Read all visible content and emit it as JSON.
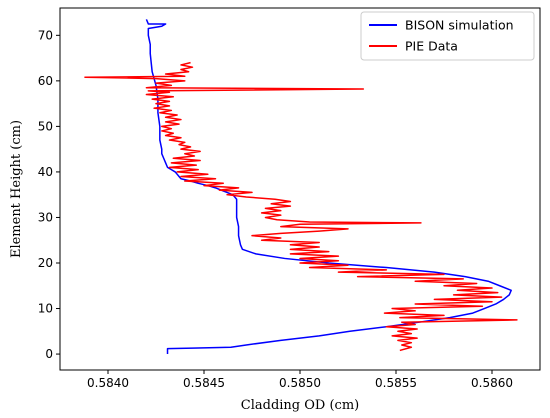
{
  "chart_data": {
    "type": "line",
    "xlabel": "Cladding OD (cm)",
    "ylabel": "Element Height (cm)",
    "xlim": [
      0.58375,
      0.58625
    ],
    "ylim": [
      -3.5,
      76
    ],
    "xticks": [
      0.584,
      0.5845,
      0.585,
      0.5855,
      0.586
    ],
    "xtick_labels": [
      "0.5840",
      "0.5845",
      "0.5850",
      "0.5855",
      "0.5860"
    ],
    "yticks": [
      0,
      10,
      20,
      30,
      40,
      50,
      60,
      70
    ],
    "ytick_labels": [
      "0",
      "10",
      "20",
      "30",
      "40",
      "50",
      "60",
      "70"
    ],
    "grid": false,
    "legend_position": "top-right",
    "series": [
      {
        "name": "BISON simulation",
        "color": "#0000ff",
        "points": [
          [
            0.58431,
            0.0
          ],
          [
            0.58431,
            1.2
          ],
          [
            0.58444,
            1.3
          ],
          [
            0.58464,
            1.5
          ],
          [
            0.58472,
            2.0
          ],
          [
            0.5849,
            3.0
          ],
          [
            0.5851,
            4.0
          ],
          [
            0.58526,
            5.0
          ],
          [
            0.58545,
            6.0
          ],
          [
            0.58562,
            7.0
          ],
          [
            0.58578,
            8.0
          ],
          [
            0.5859,
            9.0
          ],
          [
            0.58596,
            10.0
          ],
          [
            0.58602,
            11.0
          ],
          [
            0.58606,
            12.0
          ],
          [
            0.58609,
            13.0
          ],
          [
            0.5861,
            14.0
          ],
          [
            0.58604,
            15.0
          ],
          [
            0.58598,
            16.0
          ],
          [
            0.58586,
            17.0
          ],
          [
            0.5857,
            18.0
          ],
          [
            0.58545,
            19.0
          ],
          [
            0.58515,
            20.0
          ],
          [
            0.58492,
            21.0
          ],
          [
            0.58477,
            22.0
          ],
          [
            0.5847,
            23.0
          ],
          [
            0.58469,
            24.0
          ],
          [
            0.58468,
            26.0
          ],
          [
            0.58468,
            28.0
          ],
          [
            0.58467,
            30.0
          ],
          [
            0.58467,
            32.0
          ],
          [
            0.58467,
            34.0
          ],
          [
            0.58465,
            35.0
          ],
          [
            0.58462,
            35.5
          ],
          [
            0.58459,
            36.0
          ],
          [
            0.58456,
            36.5
          ],
          [
            0.58452,
            37.0
          ],
          [
            0.58447,
            37.5
          ],
          [
            0.58443,
            38.0
          ],
          [
            0.58438,
            38.5
          ],
          [
            0.58437,
            39.0
          ],
          [
            0.58436,
            39.5
          ],
          [
            0.58435,
            40.0
          ],
          [
            0.58433,
            40.5
          ],
          [
            0.58431,
            41.0
          ],
          [
            0.5843,
            42.0
          ],
          [
            0.58429,
            43.0
          ],
          [
            0.58428,
            44.0
          ],
          [
            0.58428,
            45.0
          ],
          [
            0.58427,
            47.0
          ],
          [
            0.58427,
            50.0
          ],
          [
            0.58426,
            53.0
          ],
          [
            0.58426,
            56.0
          ],
          [
            0.58425,
            59.0
          ],
          [
            0.58423,
            62.0
          ],
          [
            0.58422,
            66.0
          ],
          [
            0.58422,
            68.0
          ],
          [
            0.58421,
            70.0
          ],
          [
            0.58421,
            71.5
          ],
          [
            0.58428,
            72.0
          ],
          [
            0.5843,
            72.5
          ],
          [
            0.58421,
            72.5
          ],
          [
            0.5842,
            73.5
          ]
        ]
      },
      {
        "name": "PIE Data",
        "color": "#ff0000",
        "points": [
          [
            0.58552,
            0.8
          ],
          [
            0.58558,
            1.5
          ],
          [
            0.58553,
            2.0
          ],
          [
            0.58558,
            2.5
          ],
          [
            0.58551,
            3.0
          ],
          [
            0.58561,
            3.5
          ],
          [
            0.58548,
            4.0
          ],
          [
            0.58558,
            4.5
          ],
          [
            0.58551,
            5.0
          ],
          [
            0.58561,
            5.5
          ],
          [
            0.58545,
            6.0
          ],
          [
            0.5856,
            6.5
          ],
          [
            0.58553,
            7.0
          ],
          [
            0.58613,
            7.5
          ],
          [
            0.58552,
            8.0
          ],
          [
            0.58575,
            8.5
          ],
          [
            0.58544,
            9.0
          ],
          [
            0.5856,
            9.5
          ],
          [
            0.58548,
            10.0
          ],
          [
            0.58595,
            10.5
          ],
          [
            0.5856,
            11.0
          ],
          [
            0.586,
            11.5
          ],
          [
            0.5857,
            12.0
          ],
          [
            0.58605,
            12.5
          ],
          [
            0.5858,
            13.0
          ],
          [
            0.58603,
            13.5
          ],
          [
            0.58582,
            14.0
          ],
          [
            0.586,
            14.5
          ],
          [
            0.58575,
            15.0
          ],
          [
            0.58592,
            15.5
          ],
          [
            0.5856,
            16.0
          ],
          [
            0.58585,
            16.5
          ],
          [
            0.5853,
            17.0
          ],
          [
            0.58575,
            17.5
          ],
          [
            0.5852,
            18.0
          ],
          [
            0.58545,
            18.5
          ],
          [
            0.58505,
            19.0
          ],
          [
            0.58525,
            19.5
          ],
          [
            0.585,
            20.0
          ],
          [
            0.5852,
            20.5
          ],
          [
            0.585,
            21.0
          ],
          [
            0.5852,
            21.5
          ],
          [
            0.58495,
            22.0
          ],
          [
            0.58515,
            22.5
          ],
          [
            0.58495,
            23.0
          ],
          [
            0.5851,
            23.5
          ],
          [
            0.58495,
            24.0
          ],
          [
            0.5851,
            24.5
          ],
          [
            0.5848,
            25.0
          ],
          [
            0.5849,
            25.5
          ],
          [
            0.58475,
            26.0
          ],
          [
            0.5849,
            26.5
          ],
          [
            0.5851,
            27.0
          ],
          [
            0.58525,
            27.5
          ],
          [
            0.5849,
            28.0
          ],
          [
            0.585,
            28.5
          ],
          [
            0.58563,
            28.8
          ],
          [
            0.58505,
            29.0
          ],
          [
            0.58488,
            29.5
          ],
          [
            0.58482,
            30.0
          ],
          [
            0.5849,
            30.5
          ],
          [
            0.5848,
            31.0
          ],
          [
            0.5849,
            31.5
          ],
          [
            0.58482,
            32.0
          ],
          [
            0.58495,
            32.5
          ],
          [
            0.58485,
            33.0
          ],
          [
            0.58495,
            33.5
          ],
          [
            0.58487,
            34.0
          ],
          [
            0.58472,
            34.5
          ],
          [
            0.58462,
            35.0
          ],
          [
            0.58475,
            35.5
          ],
          [
            0.58458,
            36.0
          ],
          [
            0.58468,
            36.5
          ],
          [
            0.5845,
            37.0
          ],
          [
            0.5846,
            37.5
          ],
          [
            0.5844,
            38.0
          ],
          [
            0.58456,
            38.5
          ],
          [
            0.58438,
            39.0
          ],
          [
            0.58452,
            39.5
          ],
          [
            0.58436,
            40.0
          ],
          [
            0.58447,
            40.5
          ],
          [
            0.58432,
            41.0
          ],
          [
            0.58446,
            41.5
          ],
          [
            0.58433,
            42.0
          ],
          [
            0.58448,
            42.5
          ],
          [
            0.58434,
            43.0
          ],
          [
            0.58445,
            43.5
          ],
          [
            0.5844,
            44.0
          ],
          [
            0.58448,
            44.5
          ],
          [
            0.58438,
            45.0
          ],
          [
            0.58443,
            45.5
          ],
          [
            0.58437,
            46.0
          ],
          [
            0.5844,
            46.5
          ],
          [
            0.58432,
            47.0
          ],
          [
            0.58438,
            47.5
          ],
          [
            0.5843,
            48.0
          ],
          [
            0.58434,
            48.5
          ],
          [
            0.58428,
            49.0
          ],
          [
            0.58433,
            49.5
          ],
          [
            0.58428,
            50.0
          ],
          [
            0.58437,
            50.5
          ],
          [
            0.5843,
            51.0
          ],
          [
            0.58438,
            51.5
          ],
          [
            0.5843,
            52.0
          ],
          [
            0.58436,
            52.5
          ],
          [
            0.58427,
            53.0
          ],
          [
            0.58433,
            53.5
          ],
          [
            0.58424,
            54.0
          ],
          [
            0.58432,
            54.5
          ],
          [
            0.58425,
            55.0
          ],
          [
            0.58432,
            55.5
          ],
          [
            0.58423,
            56.0
          ],
          [
            0.58434,
            56.5
          ],
          [
            0.5842,
            57.0
          ],
          [
            0.58432,
            57.5
          ],
          [
            0.58421,
            57.8
          ],
          [
            0.58533,
            58.2
          ],
          [
            0.5842,
            58.5
          ],
          [
            0.58433,
            59.0
          ],
          [
            0.58425,
            59.5
          ],
          [
            0.5844,
            60.0
          ],
          [
            0.58425,
            60.5
          ],
          [
            0.58388,
            60.8
          ],
          [
            0.5844,
            61.0
          ],
          [
            0.5843,
            61.5
          ],
          [
            0.58442,
            62.0
          ],
          [
            0.58438,
            62.5
          ],
          [
            0.58444,
            63.0
          ],
          [
            0.58438,
            63.5
          ],
          [
            0.58443,
            64.0
          ]
        ]
      }
    ]
  }
}
